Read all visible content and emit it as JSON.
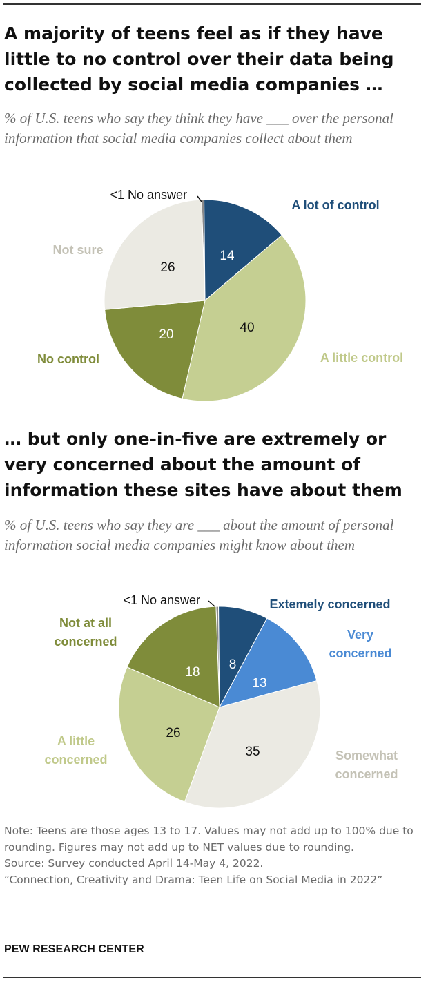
{
  "chart_data": [
    {
      "type": "pie",
      "title": "A majority of teens feel as if they have little to no control over their data being collected by social media companies …",
      "subtitle": "% of U.S. teens who say they think they have ___ over the personal information that social media companies collect about them",
      "slices": [
        {
          "label": "<1 No answer",
          "value": 0.4,
          "value_label": "",
          "color": "#8a8a8a"
        },
        {
          "label": "A lot of control",
          "value": 14,
          "value_label": "14",
          "color": "#1f4e79"
        },
        {
          "label": "A little control",
          "value": 40,
          "value_label": "40",
          "color": "#c5cf92"
        },
        {
          "label": "No control",
          "value": 20,
          "value_label": "20",
          "color": "#7f8c3a"
        },
        {
          "label": "Not sure",
          "value": 26,
          "value_label": "26",
          "color": "#ebeae3"
        }
      ]
    },
    {
      "type": "pie",
      "title": "… but only one-in-five are extremely or very concerned about the amount of information these sites have about them",
      "subtitle": "% of U.S. teens who say they are ___ about the amount of personal information social media companies might know about them",
      "slices": [
        {
          "label": "<1 No answer",
          "value": 0.4,
          "value_label": "",
          "color": "#8a8a8a"
        },
        {
          "label": "Extemely concerned",
          "value": 8,
          "value_label": "8",
          "color": "#1f4e79"
        },
        {
          "label": "Very concerned",
          "value": 13,
          "value_label": "13",
          "color": "#4a8ad4"
        },
        {
          "label": "Somewhat concerned",
          "value": 35,
          "value_label": "35",
          "color": "#ebeae3"
        },
        {
          "label": "A little concerned",
          "value": 26,
          "value_label": "26",
          "color": "#c5cf92"
        },
        {
          "label": "Not at all concerned",
          "value": 18,
          "value_label": "18",
          "color": "#7f8c3a"
        }
      ]
    }
  ],
  "footer": {
    "note": "Note: Teens are those ages 13 to 17. Values may not add up to 100% due to rounding. Figures may not add up to NET values due to rounding.",
    "source": "Source: Survey conducted April 14-May 4, 2022.",
    "report": "“Connection, Creativity and Drama: Teen Life on Social Media in 2022”",
    "brand": "PEW RESEARCH CENTER"
  },
  "colors": {
    "dark_navy_label": "#1f4e79",
    "light_blue_label": "#4a8ad4",
    "olive_label": "#7f8c3a",
    "pale_olive_label": "#c0c98a",
    "grey_label": "#c4c2b6",
    "text_dark": "#111111"
  }
}
